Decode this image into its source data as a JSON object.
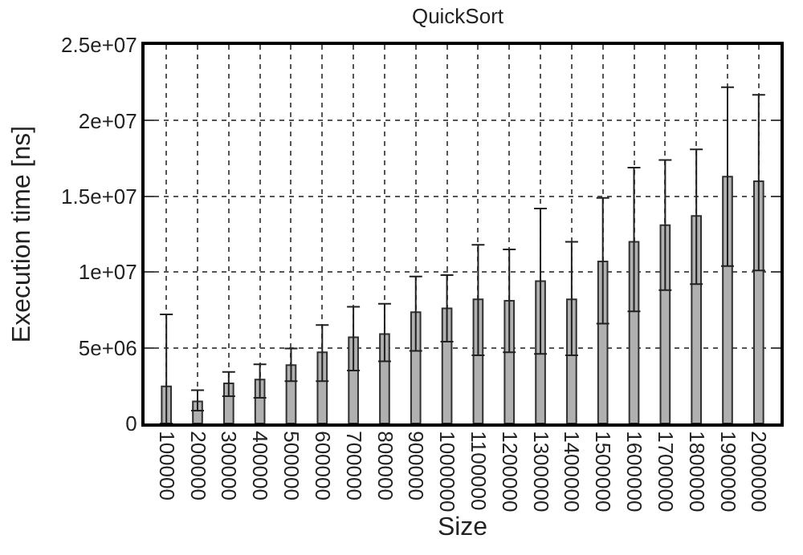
{
  "chart_data": {
    "type": "bar",
    "title": "QuickSort",
    "xlabel": "Size",
    "ylabel": "Execution time [ns]",
    "categories": [
      "100000",
      "200000",
      "300000",
      "400000",
      "500000",
      "600000",
      "700000",
      "800000",
      "900000",
      "1000000",
      "1100000",
      "1200000",
      "1300000",
      "1400000",
      "1500000",
      "1600000",
      "1700000",
      "1800000",
      "1900000",
      "2000000"
    ],
    "series": [
      {
        "color": "#b0b0b0",
        "values": [
          2450000,
          1450000,
          2650000,
          2900000,
          3850000,
          4700000,
          5700000,
          5900000,
          7350000,
          7600000,
          8200000,
          8100000,
          9400000,
          8200000,
          10700000,
          12000000,
          13100000,
          13700000,
          16300000,
          16000000
        ],
        "errors": [
          [
            0,
            7200000
          ],
          [
            850000,
            2200000
          ],
          [
            1800000,
            3400000
          ],
          [
            1700000,
            3900000
          ],
          [
            2800000,
            4950000
          ],
          [
            2800000,
            6500000
          ],
          [
            3500000,
            7700000
          ],
          [
            4100000,
            7900000
          ],
          [
            4800000,
            9700000
          ],
          [
            5400000,
            9800000
          ],
          [
            4500000,
            11800000
          ],
          [
            4700000,
            11500000
          ],
          [
            4600000,
            14200000
          ],
          [
            4500000,
            12000000
          ],
          [
            6600000,
            14900000
          ],
          [
            7400000,
            16900000
          ],
          [
            8800000,
            17400000
          ],
          [
            9200000,
            18100000
          ],
          [
            10400000,
            22200000
          ],
          [
            10100000,
            21700000
          ]
        ]
      }
    ],
    "ylim": [
      0,
      25000000
    ],
    "yticks": [
      {
        "value": 0,
        "label": "0"
      },
      {
        "value": 5000000,
        "label": "5e+06"
      },
      {
        "value": 10000000,
        "label": "1e+07"
      },
      {
        "value": 15000000,
        "label": "1.5e+07"
      },
      {
        "value": 20000000,
        "label": "2e+07"
      },
      {
        "value": 25000000,
        "label": "2.5e+07"
      }
    ],
    "grid": true,
    "legend": false
  }
}
